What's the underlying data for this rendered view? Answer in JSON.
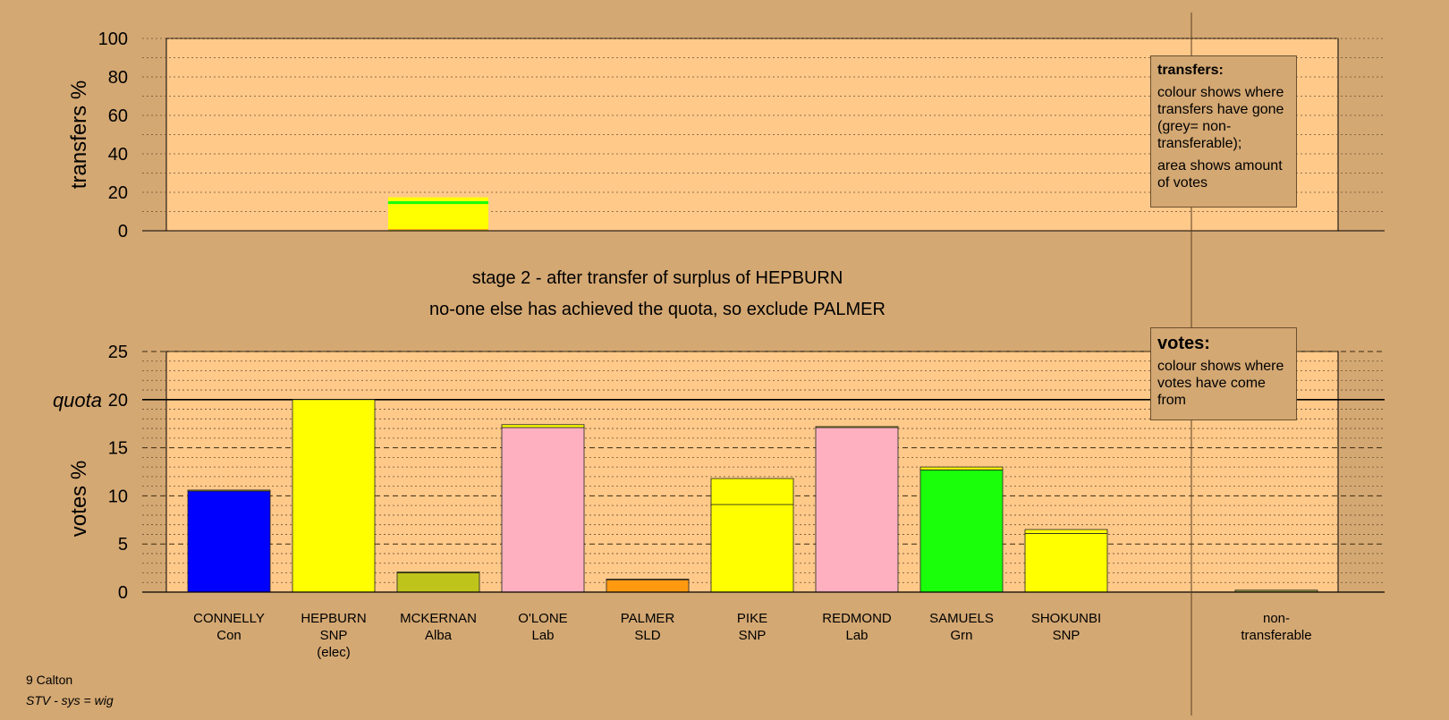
{
  "stage_title": "stage 2 - after transfer of surplus of HEPBURN",
  "stage_subtitle": "no-one else has achieved the quota, so exclude PALMER",
  "transfers_legend": {
    "heading": "transfers:",
    "line1": "colour shows where transfers have gone (grey= non-transferable);",
    "line2": "area shows amount of votes"
  },
  "votes_legend": {
    "heading": "votes:",
    "line1": "colour shows where votes have come from"
  },
  "footer": {
    "ward": "9 Calton",
    "system": "STV - sys = wig"
  },
  "colors": {
    "background": "#d4a873",
    "plot_bg": "#ffc98a",
    "Con": "#0000ff",
    "SNP": "#ffff00",
    "Alba": "#bfc41a",
    "Lab": "#ffb0c0",
    "SLD": "#ff9a10",
    "Grn": "#1aff0a",
    "nontransferable": "#a0a040"
  },
  "chart_data": [
    {
      "type": "bar",
      "title": "",
      "ylabel": "transfers %",
      "ylim": [
        0,
        100
      ],
      "yticks": [
        0,
        20,
        40,
        60,
        80,
        100
      ],
      "series": [
        {
          "name": "",
          "values": [
            {
              "category": "HEPBURN",
              "segments": [
                {
                  "to": "MCKERNAN",
                  "color": "#bfc41a",
                  "value": 0.5
                },
                {
                  "to": "PALMER",
                  "color": "#ff9a10",
                  "value": 0.4
                },
                {
                  "to": "PIKE",
                  "color": "#ffff00",
                  "value": 13.0
                },
                {
                  "to": "SAMUELS",
                  "color": "#1aff0a",
                  "value": 1.5
                },
                {
                  "to": "SHOKUNBI",
                  "color": "#ffff00",
                  "value": 2.0
                }
              ]
            }
          ]
        }
      ]
    },
    {
      "type": "bar",
      "title": "",
      "ylabel": "votes %",
      "ylim": [
        0,
        25
      ],
      "yticks": [
        0,
        5,
        10,
        15,
        20,
        25
      ],
      "quota": 20,
      "quota_label": "quota",
      "categories": [
        "CONNELLY",
        "HEPBURN",
        "MCKERNAN",
        "O'LONE",
        "PALMER",
        "PIKE",
        "REDMOND",
        "SAMUELS",
        "SHOKUNBI",
        "non-transferable"
      ],
      "category_labels": [
        [
          "CONNELLY",
          "Con"
        ],
        [
          "HEPBURN",
          "SNP",
          "(elec)"
        ],
        [
          "MCKERNAN",
          "Alba"
        ],
        [
          "O'LONE",
          "Lab"
        ],
        [
          "PALMER",
          "SLD"
        ],
        [
          "PIKE",
          "SNP"
        ],
        [
          "REDMOND",
          "Lab"
        ],
        [
          "SAMUELS",
          "Grn"
        ],
        [
          "SHOKUNBI",
          "SNP"
        ],
        [
          "non-",
          "transferable"
        ]
      ],
      "bars": [
        {
          "category": "CONNELLY",
          "segments": [
            {
              "color": "#0000ff",
              "value": 10.5
            },
            {
              "color": "#ffff00",
              "value": 0.1
            }
          ]
        },
        {
          "category": "HEPBURN",
          "segments": [
            {
              "color": "#ffff00",
              "value": 20.0
            }
          ]
        },
        {
          "category": "MCKERNAN",
          "segments": [
            {
              "color": "#bfc41a",
              "value": 2.0
            },
            {
              "color": "#ffff00",
              "value": 0.1
            }
          ]
        },
        {
          "category": "O'LONE",
          "segments": [
            {
              "color": "#ffb0c0",
              "value": 17.1
            },
            {
              "color": "#ffff00",
              "value": 0.3
            }
          ]
        },
        {
          "category": "PALMER",
          "segments": [
            {
              "color": "#ff9a10",
              "value": 1.3
            },
            {
              "color": "#ffff00",
              "value": 0.05
            }
          ]
        },
        {
          "category": "PIKE",
          "segments": [
            {
              "color": "#ffff00",
              "value": 9.1
            },
            {
              "color": "#ffff00",
              "value": 2.7
            }
          ]
        },
        {
          "category": "REDMOND",
          "segments": [
            {
              "color": "#ffb0c0",
              "value": 17.1
            },
            {
              "color": "#ffff00",
              "value": 0.1
            }
          ]
        },
        {
          "category": "SAMUELS",
          "segments": [
            {
              "color": "#1aff0a",
              "value": 12.7
            },
            {
              "color": "#ffff00",
              "value": 0.3
            }
          ]
        },
        {
          "category": "SHOKUNBI",
          "segments": [
            {
              "color": "#ffff00",
              "value": 6.1
            },
            {
              "color": "#ffff00",
              "value": 0.4
            }
          ]
        },
        {
          "category": "non-transferable",
          "segments": [
            {
              "color": "#a0a040",
              "value": 0.2
            }
          ]
        }
      ]
    }
  ]
}
